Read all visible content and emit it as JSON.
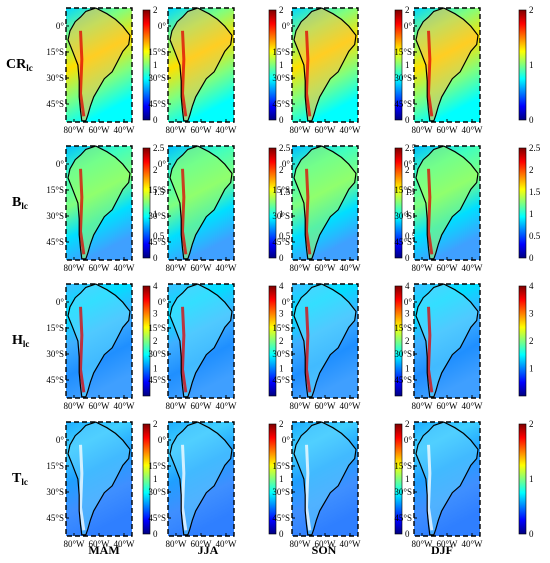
{
  "figure": {
    "columns": [
      "MAM",
      "JJA",
      "SON",
      "DJF"
    ],
    "rows": [
      {
        "key": "CR",
        "base": "CR",
        "sub": "lc",
        "colorbar_ticks": [
          "2",
          "1",
          "0"
        ],
        "vmax": 2
      },
      {
        "key": "B",
        "base": "B",
        "sub": "lc",
        "colorbar_ticks": [
          "2.5",
          "2",
          "1.5",
          "1",
          "0.5",
          "0"
        ],
        "vmax": 2.5
      },
      {
        "key": "H",
        "base": "H",
        "sub": "lc",
        "colorbar_ticks": [
          "4",
          "3",
          "2",
          "1"
        ],
        "vmax": 4
      },
      {
        "key": "T",
        "base": "T",
        "sub": "lc",
        "colorbar_ticks": [
          "2",
          "1",
          "0"
        ],
        "vmax": 2
      }
    ],
    "lat_ticks": [
      "0°",
      "15°S",
      "30°S",
      "45°S"
    ],
    "lon_ticks": [
      "80°W",
      "60°W",
      "40°W"
    ],
    "colormap": [
      "#00007f",
      "#0000ff",
      "#007fff",
      "#00ffff",
      "#7fff7f",
      "#ffff00",
      "#ff7f00",
      "#ff0000",
      "#7f0000"
    ]
  }
}
